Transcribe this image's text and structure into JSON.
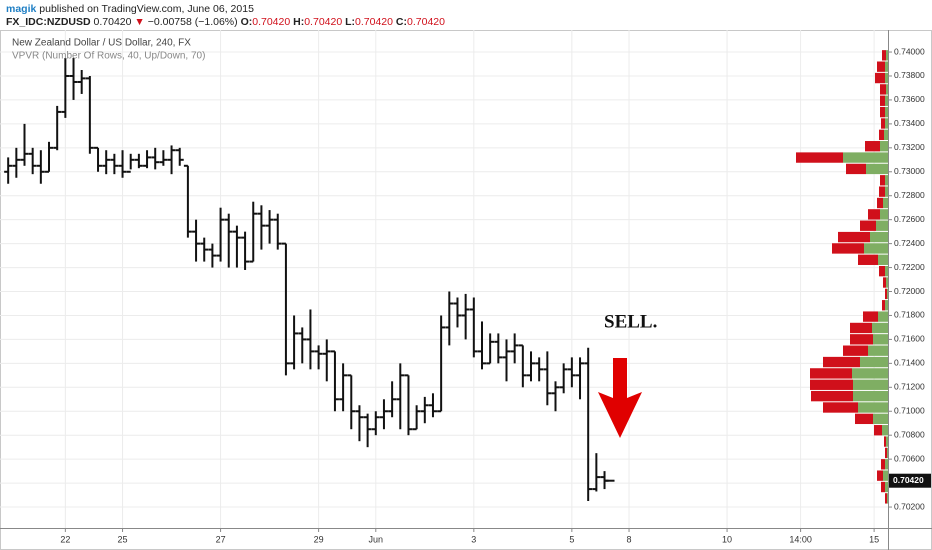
{
  "header": {
    "author": "magik",
    "published": "published on TradingView.com, June 06, 2015",
    "symbol": "FX_IDC:NZDUSD",
    "last": "0.70420",
    "change": "−0.00758 (−1.06%)",
    "ohlc": [
      {
        "label": "O:",
        "value": "0.70420"
      },
      {
        "label": "H:",
        "value": "0.70420"
      },
      {
        "label": "L:",
        "value": "0.70420"
      },
      {
        "label": "C:",
        "value": "0.70420"
      }
    ]
  },
  "chart_data": {
    "type": "ohlc",
    "title": "New Zealand Dollar / US Dollar, 240, FX",
    "subtitle": "VPVR (Number Of Rows, 40, Up/Down, 70)",
    "annotation": "SELL.",
    "color": "#111111",
    "open": [
      0.73,
      0.7305,
      0.731,
      0.7315,
      0.7305,
      0.73,
      0.732,
      0.735,
      0.738,
      0.7375,
      0.7378,
      0.732,
      0.7305,
      0.731,
      0.7305,
      0.73,
      0.731,
      0.7305,
      0.7312,
      0.7308,
      0.731,
      0.7318,
      0.7305,
      0.725,
      0.724,
      0.7235,
      0.723,
      0.726,
      0.725,
      0.7245,
      0.7225,
      0.7265,
      0.7255,
      0.726,
      0.724,
      0.714,
      0.7165,
      0.716,
      0.715,
      0.7148,
      0.715,
      0.711,
      0.713,
      0.71,
      0.7095,
      0.7085,
      0.7095,
      0.71,
      0.711,
      0.713,
      0.7085,
      0.71,
      0.7105,
      0.71,
      0.717,
      0.719,
      0.718,
      0.7185,
      0.715,
      0.714,
      0.7158,
      0.7145,
      0.715,
      0.7155,
      0.713,
      0.714,
      0.7135,
      0.7115,
      0.712,
      0.7135,
      0.713,
      0.714,
      0.7035,
      0.7045
    ],
    "high": [
      0.7312,
      0.732,
      0.734,
      0.732,
      0.7318,
      0.7325,
      0.7355,
      0.7395,
      0.7395,
      0.7385,
      0.738,
      0.732,
      0.7318,
      0.7315,
      0.7318,
      0.7315,
      0.7315,
      0.7318,
      0.732,
      0.7318,
      0.7322,
      0.732,
      0.7305,
      0.726,
      0.7245,
      0.724,
      0.727,
      0.7265,
      0.7255,
      0.725,
      0.7275,
      0.7272,
      0.7268,
      0.7265,
      0.724,
      0.718,
      0.717,
      0.7185,
      0.7155,
      0.716,
      0.715,
      0.714,
      0.713,
      0.7105,
      0.7098,
      0.71,
      0.711,
      0.7125,
      0.714,
      0.713,
      0.7105,
      0.7112,
      0.7115,
      0.718,
      0.72,
      0.7195,
      0.7198,
      0.7195,
      0.7175,
      0.7165,
      0.7165,
      0.716,
      0.7165,
      0.7155,
      0.715,
      0.7145,
      0.715,
      0.7125,
      0.714,
      0.7145,
      0.7145,
      0.7153,
      0.7065,
      0.705
    ],
    "low": [
      0.729,
      0.7295,
      0.7305,
      0.7298,
      0.729,
      0.73,
      0.7318,
      0.7345,
      0.736,
      0.7365,
      0.7315,
      0.73,
      0.7298,
      0.7298,
      0.7295,
      0.7302,
      0.7303,
      0.7303,
      0.7302,
      0.7305,
      0.7298,
      0.7305,
      0.7245,
      0.7225,
      0.7225,
      0.722,
      0.7225,
      0.722,
      0.722,
      0.7218,
      0.7225,
      0.7235,
      0.724,
      0.7235,
      0.713,
      0.7135,
      0.714,
      0.7135,
      0.7135,
      0.7125,
      0.71,
      0.71,
      0.7085,
      0.7075,
      0.707,
      0.708,
      0.7085,
      0.7095,
      0.7085,
      0.708,
      0.7085,
      0.709,
      0.7095,
      0.71,
      0.7155,
      0.717,
      0.716,
      0.7145,
      0.7135,
      0.714,
      0.714,
      0.7125,
      0.714,
      0.712,
      0.7125,
      0.7125,
      0.7105,
      0.71,
      0.7115,
      0.712,
      0.711,
      0.7025,
      0.7033,
      0.7035
    ],
    "close": [
      0.7305,
      0.731,
      0.7315,
      0.7305,
      0.73,
      0.732,
      0.735,
      0.738,
      0.7375,
      0.7378,
      0.732,
      0.7305,
      0.731,
      0.7305,
      0.73,
      0.731,
      0.7305,
      0.7312,
      0.7308,
      0.731,
      0.7318,
      0.731,
      0.725,
      0.724,
      0.7235,
      0.723,
      0.726,
      0.725,
      0.7245,
      0.7225,
      0.7265,
      0.7255,
      0.726,
      0.724,
      0.714,
      0.7165,
      0.716,
      0.715,
      0.7148,
      0.715,
      0.711,
      0.713,
      0.71,
      0.7095,
      0.7085,
      0.7095,
      0.71,
      0.711,
      0.713,
      0.7085,
      0.71,
      0.7105,
      0.71,
      0.717,
      0.719,
      0.718,
      0.7185,
      0.715,
      0.714,
      0.7158,
      0.7145,
      0.715,
      0.7155,
      0.713,
      0.714,
      0.7135,
      0.7115,
      0.712,
      0.7135,
      0.713,
      0.714,
      0.7035,
      0.7045,
      0.7042
    ],
    "last_price": {
      "value": 0.7042,
      "label": "0.70420"
    },
    "xlim": [
      -1,
      107.7
    ],
    "xticks": [
      {
        "value": 7,
        "label": "22"
      },
      {
        "value": 14,
        "label": "25"
      },
      {
        "value": 26,
        "label": "27"
      },
      {
        "value": 38,
        "label": "29"
      },
      {
        "value": 45,
        "label": "Jun"
      },
      {
        "value": 57,
        "label": "3"
      },
      {
        "value": 69,
        "label": "5"
      },
      {
        "value": 76,
        "label": "8"
      },
      {
        "value": 88,
        "label": "10"
      },
      {
        "value": 97,
        "label": "14:00"
      },
      {
        "value": 106,
        "label": "15"
      }
    ],
    "ylim": [
      0.70025,
      0.74184
    ],
    "yticks": [
      {
        "value": 0.702,
        "label": "0.70200"
      },
      {
        "value": 0.704,
        "label": "0.70400"
      },
      {
        "value": 0.706,
        "label": "0.70600"
      },
      {
        "value": 0.708,
        "label": "0.70800"
      },
      {
        "value": 0.71,
        "label": "0.71000"
      },
      {
        "value": 0.712,
        "label": "0.71200"
      },
      {
        "value": 0.714,
        "label": "0.71400"
      },
      {
        "value": 0.716,
        "label": "0.71600"
      },
      {
        "value": 0.718,
        "label": "0.71800"
      },
      {
        "value": 0.72,
        "label": "0.72000"
      },
      {
        "value": 0.722,
        "label": "0.72200"
      },
      {
        "value": 0.724,
        "label": "0.72400"
      },
      {
        "value": 0.726,
        "label": "0.72600"
      },
      {
        "value": 0.728,
        "label": "0.72800"
      },
      {
        "value": 0.73,
        "label": "0.73000"
      },
      {
        "value": 0.732,
        "label": "0.73200"
      },
      {
        "value": 0.734,
        "label": "0.73400"
      },
      {
        "value": 0.736,
        "label": "0.73600"
      },
      {
        "value": 0.738,
        "label": "0.73800"
      },
      {
        "value": 0.74,
        "label": "0.74000"
      }
    ],
    "grid": true,
    "volume_profile": {
      "range": [
        0.70225,
        0.7402
      ],
      "up_color": "#7fae63",
      "down_color": "#d0101b",
      "up": [
        2,
        3,
        3,
        2,
        3,
        3,
        3,
        4,
        8,
        45,
        22,
        3,
        3,
        5,
        8,
        12,
        18,
        24,
        10,
        3,
        2,
        1,
        3,
        10,
        16,
        15,
        20,
        28,
        36,
        35,
        35,
        30,
        15,
        6,
        2,
        1,
        3,
        5,
        3,
        1
      ],
      "down": [
        4,
        8,
        10,
        6,
        5,
        5,
        4,
        5,
        15,
        47,
        20,
        5,
        6,
        6,
        12,
        16,
        32,
        32,
        20,
        6,
        3,
        2,
        3,
        15,
        22,
        23,
        25,
        37,
        42,
        43,
        42,
        35,
        18,
        8,
        2,
        2,
        4,
        6,
        4,
        2
      ]
    }
  }
}
